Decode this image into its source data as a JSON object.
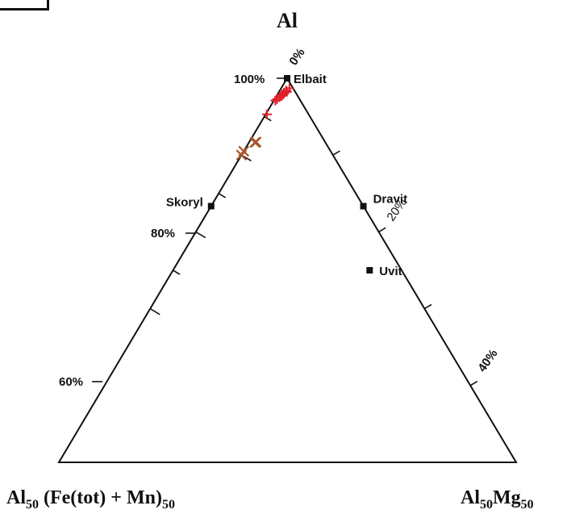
{
  "chart_data": {
    "type": "ternary-scatter",
    "vertices": {
      "top": "Al",
      "bottom_left_main": "Al",
      "bottom_left_sub1": "50",
      "bottom_left_mid": " (Fe(tot) + Mn)",
      "bottom_left_sub2": "50",
      "bottom_right_main": "Al",
      "bottom_right_sub1": "50",
      "bottom_right_mid": "Mg",
      "bottom_right_sub2": "50"
    },
    "left_axis_labels": [
      "100%",
      "80%",
      "60%"
    ],
    "right_axis_labels": [
      "0%",
      "20%",
      "40%"
    ],
    "end_members": [
      {
        "name": "Elbait",
        "al": 100,
        "mg": 0
      },
      {
        "name": "Skoryl",
        "al": 66.7,
        "mg": 0
      },
      {
        "name": "Dravit",
        "al": 66.7,
        "mg": 33.3
      },
      {
        "name": "Uvit",
        "al": 50,
        "mg": 43
      }
    ],
    "series": [
      {
        "marker": "plus",
        "color": "#e0202a",
        "points": [
          {
            "al": 97.4,
            "mg": 1.8
          },
          {
            "al": 96.8,
            "mg": 1.4
          },
          {
            "al": 96.5,
            "mg": 1.7
          },
          {
            "al": 96.2,
            "mg": 1.2
          },
          {
            "al": 95.9,
            "mg": 1.3
          },
          {
            "al": 95.6,
            "mg": 1.1
          },
          {
            "al": 95.4,
            "mg": 1.0
          },
          {
            "al": 95.1,
            "mg": 0.8
          },
          {
            "al": 94.6,
            "mg": 0.5
          },
          {
            "al": 94.2,
            "mg": 0.3
          },
          {
            "al": 90.6,
            "mg": 0.3
          }
        ]
      },
      {
        "marker": "x",
        "color": "#a8552a",
        "points": [
          {
            "al": 83.4,
            "mg": 1.5
          },
          {
            "al": 83.3,
            "mg": 1.3
          },
          {
            "al": 81.0,
            "mg": 0.0
          },
          {
            "al": 80.0,
            "mg": 0.0
          }
        ]
      }
    ]
  }
}
